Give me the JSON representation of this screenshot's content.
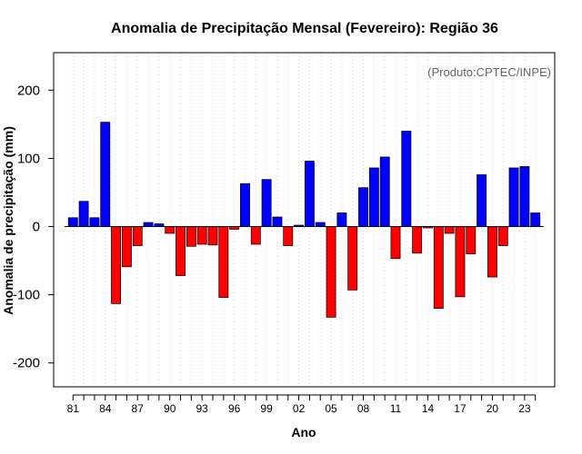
{
  "chart_data": {
    "type": "bar",
    "title": "Anomalia de Precipitação Mensal (Fevereiro): Região 36",
    "xlabel": "Ano",
    "ylabel": "Anomalia de precipitação (mm)",
    "annotation": "(Produto:CPTEC/INPE)",
    "ylim": [
      -235,
      255
    ],
    "yticks": [
      -200,
      -100,
      0,
      100,
      200
    ],
    "xlim": [
      1979.2,
      2025.8
    ],
    "xticks": [
      {
        "year": 1981,
        "label": "81"
      },
      {
        "year": 1984,
        "label": "84"
      },
      {
        "year": 1987,
        "label": "87"
      },
      {
        "year": 1990,
        "label": "90"
      },
      {
        "year": 1993,
        "label": "93"
      },
      {
        "year": 1996,
        "label": "96"
      },
      {
        "year": 1999,
        "label": "99"
      },
      {
        "year": 2002,
        "label": "02"
      },
      {
        "year": 2005,
        "label": "05"
      },
      {
        "year": 2008,
        "label": "08"
      },
      {
        "year": 2011,
        "label": "11"
      },
      {
        "year": 2014,
        "label": "14"
      },
      {
        "year": 2017,
        "label": "17"
      },
      {
        "year": 2020,
        "label": "20"
      },
      {
        "year": 2023,
        "label": "23"
      }
    ],
    "years": [
      1981,
      1982,
      1983,
      1984,
      1985,
      1986,
      1987,
      1988,
      1989,
      1990,
      1991,
      1992,
      1993,
      1994,
      1995,
      1996,
      1997,
      1998,
      1999,
      2000,
      2001,
      2002,
      2003,
      2004,
      2005,
      2006,
      2007,
      2008,
      2009,
      2010,
      2011,
      2012,
      2013,
      2014,
      2015,
      2016,
      2017,
      2018,
      2019,
      2020,
      2021,
      2022,
      2023,
      2024
    ],
    "values": [
      13,
      37,
      13,
      153,
      -113,
      -59,
      -28,
      6,
      4,
      -10,
      -72,
      -29,
      -26,
      -27,
      -104,
      -4,
      63,
      -26,
      69,
      14,
      -28,
      2,
      96,
      6,
      -133,
      20,
      -93,
      57,
      86,
      102,
      -47,
      140,
      -39,
      -2,
      -120,
      -10,
      -103,
      -40,
      76,
      -74,
      -28,
      86,
      88,
      20
    ],
    "colors": {
      "positive": "#0000ff",
      "negative": "#ff0000",
      "grid": "#d3d3d3",
      "zero_line": "#000000",
      "bar_stroke": "#000000"
    }
  }
}
